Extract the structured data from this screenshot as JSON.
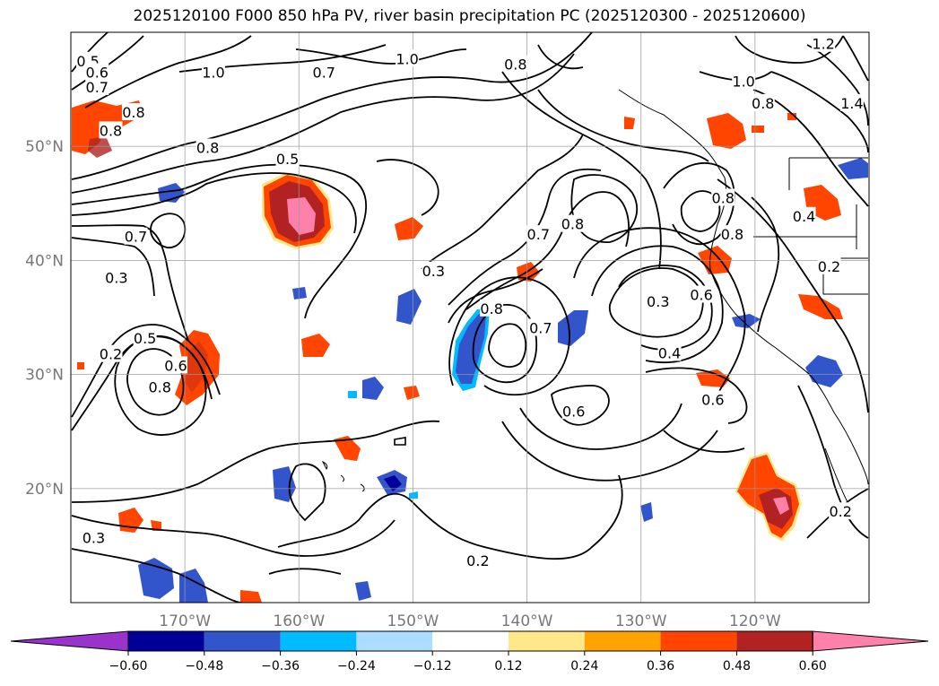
{
  "title": "2025120100 F000 850 hPa PV, river basin precipitation PC (2025120300 - 2025120600)",
  "map": {
    "lon_range": [
      -180,
      -110
    ],
    "lat_range": [
      10,
      60
    ],
    "lon_ticks": [
      {
        "value": -170,
        "label": "170°W"
      },
      {
        "value": -160,
        "label": "160°W"
      },
      {
        "value": -150,
        "label": "150°W"
      },
      {
        "value": -140,
        "label": "140°W"
      },
      {
        "value": -130,
        "label": "130°W"
      },
      {
        "value": -120,
        "label": "120°W"
      }
    ],
    "lat_ticks": [
      {
        "value": 20,
        "label": "20°N"
      },
      {
        "value": 30,
        "label": "30°N"
      },
      {
        "value": 40,
        "label": "40°N"
      },
      {
        "value": 50,
        "label": "50°N"
      }
    ],
    "gridlines": true
  },
  "contour_labels": [
    {
      "text": "0.5",
      "lon": -178.5,
      "lat": 57.5
    },
    {
      "text": "0.6",
      "lon": -177.7,
      "lat": 56.5
    },
    {
      "text": "0.7",
      "lon": -177.7,
      "lat": 55.2
    },
    {
      "text": "1.0",
      "lon": -167.5,
      "lat": 56.5
    },
    {
      "text": "1.0",
      "lon": -150.5,
      "lat": 57.7
    },
    {
      "text": "0.7",
      "lon": -157.8,
      "lat": 56.5
    },
    {
      "text": "0.8",
      "lon": -141.0,
      "lat": 57.2
    },
    {
      "text": "1.0",
      "lon": -121.0,
      "lat": 55.7
    },
    {
      "text": "1.2",
      "lon": -114.0,
      "lat": 59.0
    },
    {
      "text": "1.4",
      "lon": -111.5,
      "lat": 53.8
    },
    {
      "text": "0.8",
      "lon": -119.3,
      "lat": 53.8
    },
    {
      "text": "0.8",
      "lon": -174.5,
      "lat": 53.0
    },
    {
      "text": "0.8",
      "lon": -176.5,
      "lat": 51.4
    },
    {
      "text": "0.8",
      "lon": -168.0,
      "lat": 49.9
    },
    {
      "text": "0.5",
      "lon": -161.0,
      "lat": 48.9
    },
    {
      "text": "0.7",
      "lon": -174.3,
      "lat": 42.1
    },
    {
      "text": "0.3",
      "lon": -176.0,
      "lat": 38.5
    },
    {
      "text": "0.5",
      "lon": -173.5,
      "lat": 33.2
    },
    {
      "text": "0.2",
      "lon": -176.5,
      "lat": 31.8
    },
    {
      "text": "0.6",
      "lon": -170.8,
      "lat": 30.8
    },
    {
      "text": "0.8",
      "lon": -172.2,
      "lat": 28.9
    },
    {
      "text": "0.3",
      "lon": -178.0,
      "lat": 15.7
    },
    {
      "text": "0.3",
      "lon": -148.2,
      "lat": 39.1
    },
    {
      "text": "0.7",
      "lon": -139.0,
      "lat": 42.3
    },
    {
      "text": "0.8",
      "lon": -136.0,
      "lat": 43.2
    },
    {
      "text": "0.8",
      "lon": -143.1,
      "lat": 35.8
    },
    {
      "text": "0.7",
      "lon": -138.8,
      "lat": 34.1
    },
    {
      "text": "0.6",
      "lon": -135.9,
      "lat": 26.8
    },
    {
      "text": "0.2",
      "lon": -144.3,
      "lat": 13.7
    },
    {
      "text": "0.3",
      "lon": -128.5,
      "lat": 36.4
    },
    {
      "text": "0.6",
      "lon": -124.7,
      "lat": 37.0
    },
    {
      "text": "0.4",
      "lon": -127.5,
      "lat": 31.9
    },
    {
      "text": "0.6",
      "lon": -123.7,
      "lat": 27.8
    },
    {
      "text": "0.4",
      "lon": -115.7,
      "lat": 43.9
    },
    {
      "text": "0.8",
      "lon": -122.8,
      "lat": 45.5
    },
    {
      "text": "0.8",
      "lon": -122.0,
      "lat": 42.3
    },
    {
      "text": "0.2",
      "lon": -113.5,
      "lat": 39.5
    },
    {
      "text": "0.2",
      "lon": -112.5,
      "lat": 18.0
    }
  ],
  "colorbar": {
    "colors": [
      "#9933cc",
      "#000099",
      "#3355cc",
      "#00bbff",
      "#aaddff",
      "#ffffff",
      "#ffe88a",
      "#ffa300",
      "#ff4500",
      "#b22222",
      "#ff80aa"
    ],
    "ticks": [
      "−0.60",
      "−0.48",
      "−0.36",
      "−0.24",
      "−0.12",
      "0.12",
      "0.24",
      "0.36",
      "0.48",
      "0.60"
    ]
  }
}
